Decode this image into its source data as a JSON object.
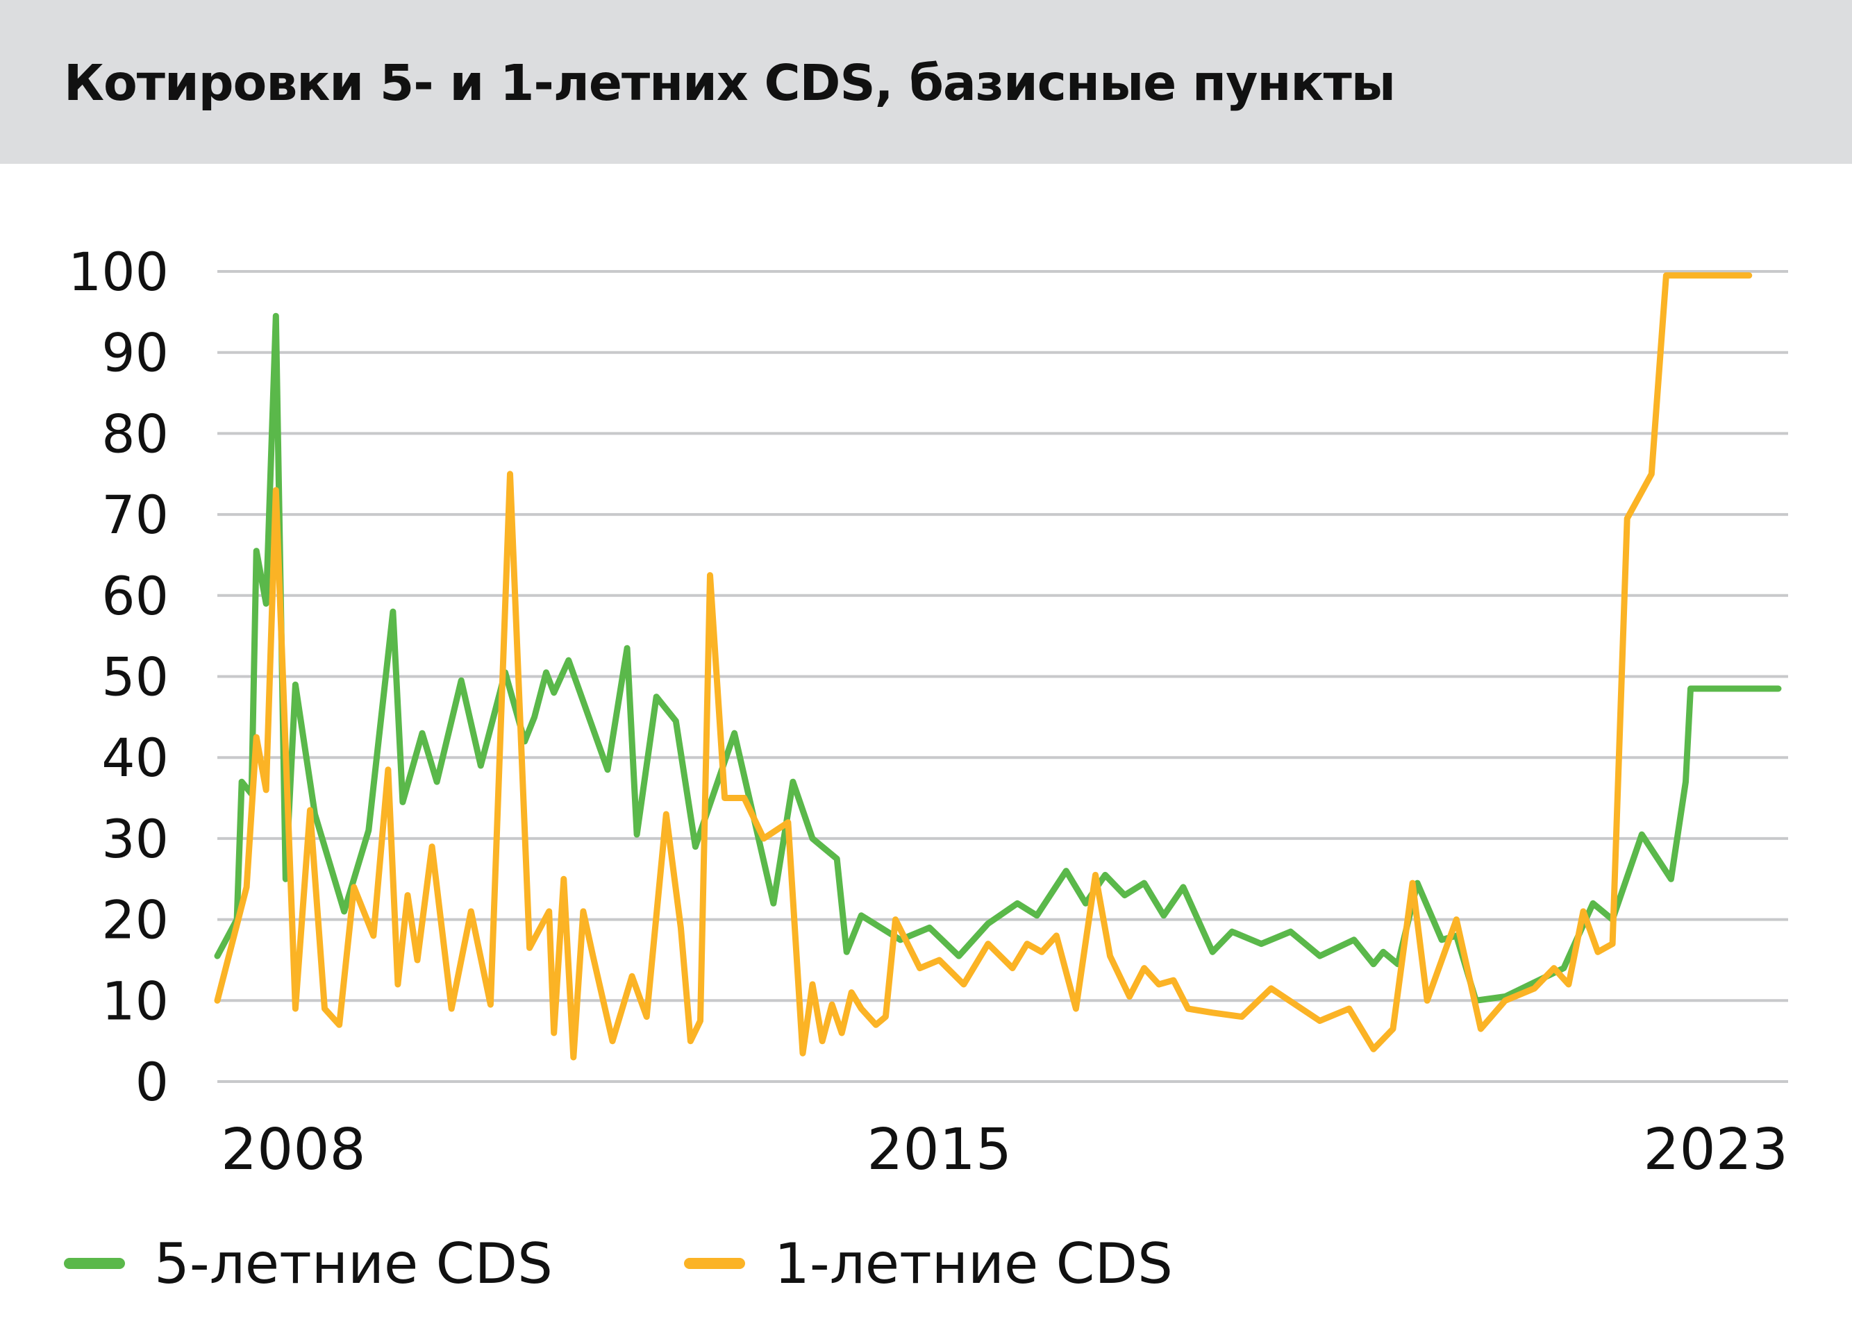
{
  "header": {
    "title": "Котировки 5- и 1-летних CDS, базисные пункты"
  },
  "colors": {
    "five_year": "#5ab84a",
    "one_year": "#fbb325",
    "grid": "#c8c9cb",
    "header_bg": "#dcdddf"
  },
  "legend": {
    "five_year_label": "5-летние CDS",
    "one_year_label": "1-летние CDS"
  },
  "chart_data": {
    "type": "line",
    "title": "Котировки 5- и 1-летних CDS, базисные пункты",
    "xlabel": "",
    "ylabel": "",
    "ylim": [
      0,
      100
    ],
    "xlim": [
      2007.6,
      2023.7
    ],
    "yticks": [
      0,
      10,
      20,
      30,
      40,
      50,
      60,
      70,
      80,
      90,
      100
    ],
    "xticks": [
      2008,
      2015,
      2023
    ],
    "grid": true,
    "legend_position": "bottom-left",
    "series": [
      {
        "name": "5-летние CDS",
        "color": "#5ab84a",
        "x": [
          2007.6,
          2007.8,
          2007.85,
          2007.95,
          2008.0,
          2008.1,
          2008.2,
          2008.3,
          2008.4,
          2008.45,
          2008.6,
          2008.9,
          2009.15,
          2009.4,
          2009.5,
          2009.7,
          2009.85,
          2010.1,
          2010.3,
          2010.55,
          2010.75,
          2010.85,
          2010.97,
          2011.05,
          2011.2,
          2011.6,
          2011.8,
          2011.9,
          2012.1,
          2012.3,
          2012.5,
          2012.9,
          2013.1,
          2013.3,
          2013.5,
          2013.7,
          2013.8,
          2013.95,
          2014.05,
          2014.2,
          2014.6,
          2014.9,
          2015.2,
          2015.5,
          2015.8,
          2016.0,
          2016.3,
          2016.5,
          2016.7,
          2016.9,
          2017.1,
          2017.3,
          2017.5,
          2017.8,
          2018.0,
          2018.3,
          2018.6,
          2018.9,
          2019.25,
          2019.45,
          2019.55,
          2019.7,
          2019.9,
          2020.15,
          2020.3,
          2020.5,
          2020.8,
          2021.4,
          2021.7,
          2021.9,
          2022.2,
          2022.5,
          2022.65,
          2022.7,
          2022.85,
          2023.05,
          2023.3,
          2023.6
        ],
        "values": [
          15.5,
          20,
          37,
          35.5,
          65.5,
          59,
          94.5,
          25,
          49,
          45,
          33,
          21,
          31,
          58,
          34.5,
          43,
          37,
          49.5,
          39,
          50.5,
          42,
          45,
          50.5,
          48,
          52,
          38.5,
          53.5,
          30.5,
          47.5,
          44.5,
          29,
          43,
          32.5,
          22,
          37,
          30,
          29,
          27.5,
          16,
          20.5,
          17.5,
          19,
          15.5,
          19.5,
          22,
          20.5,
          26,
          22,
          25.5,
          23,
          24.5,
          20.5,
          24,
          16,
          18.5,
          17,
          18.5,
          15.5,
          17.5,
          14.5,
          16,
          14.5,
          24.5,
          17.5,
          18,
          10,
          10.5,
          14,
          22,
          20,
          30.5,
          25,
          37,
          48.5,
          48.5,
          48.5,
          48.5,
          48.5
        ]
      },
      {
        "name": "1-летние CDS",
        "color": "#fbb325",
        "x": [
          2007.6,
          2007.9,
          2008.0,
          2008.1,
          2008.2,
          2008.4,
          2008.55,
          2008.7,
          2008.85,
          2009.0,
          2009.2,
          2009.35,
          2009.45,
          2009.55,
          2009.65,
          2009.8,
          2010.0,
          2010.2,
          2010.4,
          2010.6,
          2010.8,
          2011.0,
          2011.05,
          2011.15,
          2011.25,
          2011.35,
          2011.45,
          2011.65,
          2011.85,
          2012.0,
          2012.2,
          2012.35,
          2012.45,
          2012.55,
          2012.65,
          2012.8,
          2013.0,
          2013.2,
          2013.45,
          2013.6,
          2013.7,
          2013.8,
          2013.9,
          2014.0,
          2014.1,
          2014.2,
          2014.35,
          2014.45,
          2014.55,
          2014.8,
          2015.0,
          2015.25,
          2015.5,
          2015.75,
          2015.9,
          2016.05,
          2016.2,
          2016.4,
          2016.6,
          2016.75,
          2016.95,
          2017.1,
          2017.25,
          2017.4,
          2017.55,
          2017.8,
          2018.1,
          2018.4,
          2018.9,
          2019.2,
          2019.45,
          2019.65,
          2019.85,
          2020.0,
          2020.3,
          2020.55,
          2020.8,
          2021.1,
          2021.3,
          2021.45,
          2021.6,
          2021.75,
          2021.9,
          2022.05,
          2022.3,
          2022.45,
          2022.6,
          2022.8,
          2023.0,
          2023.15,
          2023.3
        ],
        "values": [
          10,
          24,
          42.5,
          36,
          73,
          9,
          33.5,
          9,
          7,
          24,
          18,
          38.5,
          12,
          23,
          15,
          29,
          9,
          21,
          9.5,
          75,
          16.5,
          21,
          6,
          25,
          3,
          21,
          15.5,
          5,
          13,
          8,
          33,
          19,
          5,
          7.5,
          62.5,
          35,
          35,
          30,
          32,
          3.5,
          12,
          5,
          9.5,
          6,
          11,
          9,
          7,
          8,
          20,
          14,
          15,
          12,
          17,
          14,
          17,
          16,
          18,
          9,
          25.5,
          15.5,
          10.5,
          14,
          12,
          12.5,
          9,
          8.5,
          8,
          11.5,
          7.5,
          9,
          4,
          6.5,
          24.5,
          10,
          20,
          6.5,
          10,
          11.5,
          14,
          12,
          21,
          16,
          17,
          69.5,
          75,
          99.5,
          99.5,
          99.5,
          99.5,
          99.5,
          99.5
        ]
      }
    ]
  }
}
